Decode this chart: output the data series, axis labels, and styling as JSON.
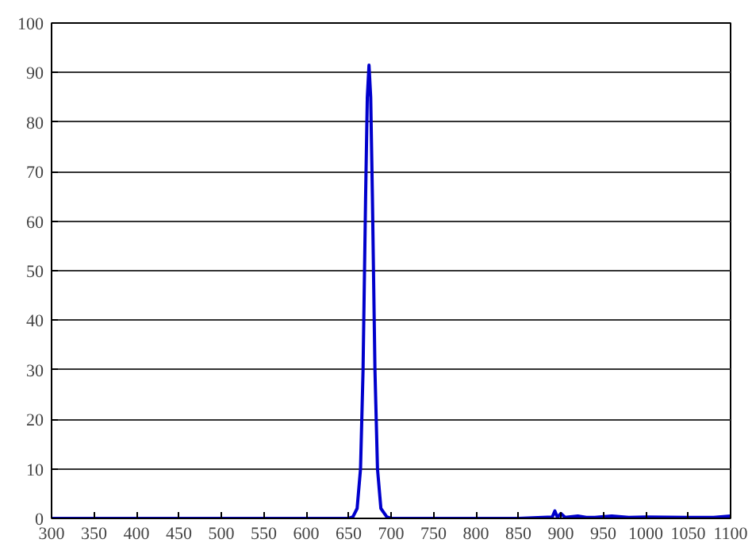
{
  "chart_data": {
    "type": "line",
    "x": [
      300,
      400,
      500,
      600,
      650,
      655,
      660,
      664,
      667,
      670,
      672,
      674,
      676,
      678,
      681,
      684,
      688,
      695,
      700,
      800,
      850,
      890,
      893,
      896,
      900,
      905,
      920,
      930,
      940,
      960,
      980,
      1000,
      1050,
      1080,
      1100
    ],
    "series": [
      {
        "color": "#0000cc",
        "values": [
          0,
          0,
          0,
          0,
          0,
          0.3,
          2,
          10,
          30,
          65,
          85,
          91.5,
          85,
          65,
          30,
          10,
          2,
          0.3,
          0,
          0,
          0,
          0.3,
          1.5,
          0.2,
          1,
          0.2,
          0.5,
          0.2,
          0.2,
          0.5,
          0.2,
          0.3,
          0.2,
          0.2,
          0.5
        ]
      }
    ],
    "xlim": [
      300,
      1100
    ],
    "xticks": [
      300,
      350,
      400,
      450,
      500,
      550,
      600,
      650,
      700,
      750,
      800,
      850,
      900,
      950,
      1000,
      1050,
      1100
    ],
    "ylim": [
      0,
      100
    ],
    "yticks": [
      0,
      10,
      20,
      30,
      40,
      50,
      60,
      70,
      80,
      90,
      100
    ],
    "grid": "y",
    "marker": "none",
    "line_style": "solid"
  }
}
